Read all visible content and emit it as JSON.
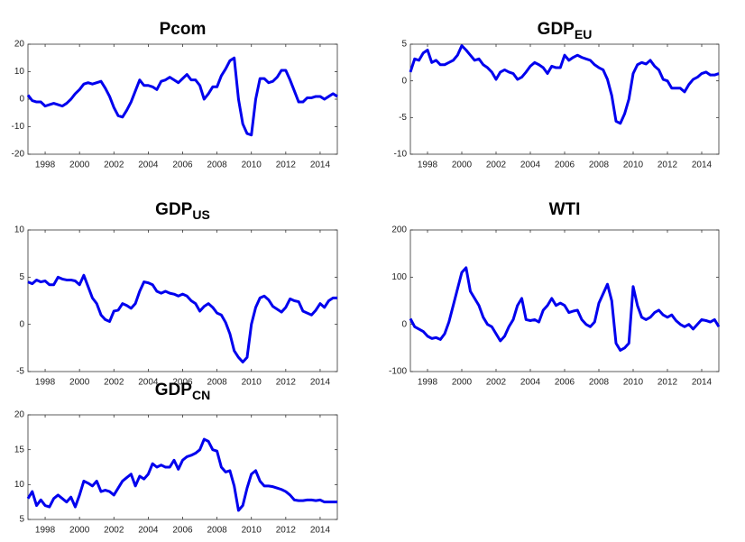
{
  "chart_data": [
    {
      "type": "line",
      "title": "Pcom",
      "x": [
        1997,
        1997.25,
        1997.5,
        1997.75,
        1998,
        1998.25,
        1998.5,
        1998.75,
        1999,
        1999.25,
        1999.5,
        1999.75,
        2000,
        2000.25,
        2000.5,
        2000.75,
        2001,
        2001.25,
        2001.5,
        2001.75,
        2002,
        2002.25,
        2002.5,
        2002.75,
        2003,
        2003.25,
        2003.5,
        2003.75,
        2004,
        2004.25,
        2004.5,
        2004.75,
        2005,
        2005.25,
        2005.5,
        2005.75,
        2006,
        2006.25,
        2006.5,
        2006.75,
        2007,
        2007.25,
        2007.5,
        2007.75,
        2008,
        2008.25,
        2008.5,
        2008.75,
        2009,
        2009.25,
        2009.5,
        2009.75,
        2010,
        2010.25,
        2010.5,
        2010.75,
        2011,
        2011.25,
        2011.5,
        2011.75,
        2012,
        2012.25,
        2012.5,
        2012.75,
        2013,
        2013.25,
        2013.5,
        2013.75,
        2014,
        2014.25,
        2014.5,
        2014.75,
        2015
      ],
      "values": [
        1.5,
        -0.5,
        -1,
        -1,
        -2.5,
        -2,
        -1.5,
        -2,
        -2.5,
        -1.5,
        0,
        2,
        3.5,
        5.5,
        6,
        5.5,
        6,
        6.5,
        4,
        1,
        -3,
        -6,
        -6.5,
        -4,
        -1,
        3,
        7,
        5,
        5,
        4.5,
        3.5,
        6.5,
        7,
        8,
        7,
        6,
        7.5,
        9,
        7,
        7,
        5,
        0,
        2,
        4.5,
        4.5,
        8.5,
        11,
        14,
        15,
        0,
        -9,
        -12.5,
        -13,
        0,
        7.5,
        7.5,
        6,
        6.5,
        8,
        10.5,
        10.5,
        7,
        3,
        -1,
        -1,
        0.5,
        0.5,
        1,
        1,
        0,
        1,
        2,
        1
      ],
      "color": "#0000ee",
      "xlim": [
        1997,
        2015
      ],
      "xticks": [
        1998,
        2000,
        2002,
        2004,
        2006,
        2008,
        2010,
        2012,
        2014
      ],
      "ylim": [
        -20,
        20
      ],
      "yticks": [
        -20,
        -10,
        0,
        10,
        20
      ]
    },
    {
      "type": "line",
      "title": "GDP",
      "title_subscript": "EU",
      "x": [
        1997,
        1997.25,
        1997.5,
        1997.75,
        1998,
        1998.25,
        1998.5,
        1998.75,
        1999,
        1999.25,
        1999.5,
        1999.75,
        2000,
        2000.25,
        2000.5,
        2000.75,
        2001,
        2001.25,
        2001.5,
        2001.75,
        2002,
        2002.25,
        2002.5,
        2002.75,
        2003,
        2003.25,
        2003.5,
        2003.75,
        2004,
        2004.25,
        2004.5,
        2004.75,
        2005,
        2005.25,
        2005.5,
        2005.75,
        2006,
        2006.25,
        2006.5,
        2006.75,
        2007,
        2007.25,
        2007.5,
        2007.75,
        2008,
        2008.25,
        2008.5,
        2008.75,
        2009,
        2009.25,
        2009.5,
        2009.75,
        2010,
        2010.25,
        2010.5,
        2010.75,
        2011,
        2011.25,
        2011.5,
        2011.75,
        2012,
        2012.25,
        2012.5,
        2012.75,
        2013,
        2013.25,
        2013.5,
        2013.75,
        2014,
        2014.25,
        2014.5,
        2014.75,
        2015
      ],
      "values": [
        1.2,
        3,
        2.8,
        3.8,
        4.2,
        2.5,
        2.8,
        2.2,
        2.2,
        2.5,
        2.8,
        3.5,
        4.8,
        4.2,
        3.5,
        2.8,
        3,
        2.2,
        1.8,
        1.2,
        0.2,
        1.2,
        1.5,
        1.2,
        1,
        0.2,
        0.5,
        1.2,
        2,
        2.5,
        2.2,
        1.8,
        1,
        2,
        1.8,
        1.8,
        3.5,
        2.8,
        3.2,
        3.5,
        3.2,
        3,
        2.8,
        2.2,
        1.8,
        1.5,
        0.2,
        -2,
        -5.5,
        -5.8,
        -4.5,
        -2.5,
        1,
        2.2,
        2.5,
        2.3,
        2.8,
        2,
        1.5,
        0.2,
        0,
        -1,
        -1,
        -1,
        -1.5,
        -0.5,
        0.2,
        0.5,
        1,
        1.2,
        0.8,
        0.8,
        1
      ],
      "color": "#0000ee",
      "xlim": [
        1997,
        2015
      ],
      "xticks": [
        1998,
        2000,
        2002,
        2004,
        2006,
        2008,
        2010,
        2012,
        2014
      ],
      "ylim": [
        -10,
        5
      ],
      "yticks": [
        -10,
        -5,
        0,
        5
      ]
    },
    {
      "type": "line",
      "title": "GDP",
      "title_subscript": "US",
      "x": [
        1997,
        1997.25,
        1997.5,
        1997.75,
        1998,
        1998.25,
        1998.5,
        1998.75,
        1999,
        1999.25,
        1999.5,
        1999.75,
        2000,
        2000.25,
        2000.5,
        2000.75,
        2001,
        2001.25,
        2001.5,
        2001.75,
        2002,
        2002.25,
        2002.5,
        2002.75,
        2003,
        2003.25,
        2003.5,
        2003.75,
        2004,
        2004.25,
        2004.5,
        2004.75,
        2005,
        2005.25,
        2005.5,
        2005.75,
        2006,
        2006.25,
        2006.5,
        2006.75,
        2007,
        2007.25,
        2007.5,
        2007.75,
        2008,
        2008.25,
        2008.5,
        2008.75,
        2009,
        2009.25,
        2009.5,
        2009.75,
        2010,
        2010.25,
        2010.5,
        2010.75,
        2011,
        2011.25,
        2011.5,
        2011.75,
        2012,
        2012.25,
        2012.5,
        2012.75,
        2013,
        2013.25,
        2013.5,
        2013.75,
        2014,
        2014.25,
        2014.5,
        2014.75,
        2015
      ],
      "values": [
        4.5,
        4.3,
        4.7,
        4.5,
        4.6,
        4.2,
        4.2,
        5,
        4.8,
        4.7,
        4.7,
        4.6,
        4.2,
        5.2,
        4,
        2.8,
        2.2,
        1,
        0.5,
        0.3,
        1.4,
        1.5,
        2.2,
        2,
        1.7,
        2.2,
        3.5,
        4.5,
        4.4,
        4.2,
        3.5,
        3.3,
        3.5,
        3.3,
        3.2,
        3,
        3.2,
        3,
        2.5,
        2.2,
        1.4,
        1.9,
        2.2,
        1.8,
        1.2,
        1,
        0.2,
        -1,
        -2.8,
        -3.5,
        -4,
        -3.5,
        0,
        1.8,
        2.8,
        3,
        2.6,
        1.9,
        1.6,
        1.3,
        1.8,
        2.7,
        2.5,
        2.4,
        1.4,
        1.2,
        1,
        1.5,
        2.2,
        1.8,
        2.5,
        2.8,
        2.8
      ],
      "color": "#0000ee",
      "xlim": [
        1997,
        2015
      ],
      "xticks": [
        1998,
        2000,
        2002,
        2004,
        2006,
        2008,
        2010,
        2012,
        2014
      ],
      "ylim": [
        -5,
        10
      ],
      "yticks": [
        -5,
        0,
        5,
        10
      ]
    },
    {
      "type": "line",
      "title": "WTI",
      "x": [
        1997,
        1997.25,
        1997.5,
        1997.75,
        1998,
        1998.25,
        1998.5,
        1998.75,
        1999,
        1999.25,
        1999.5,
        1999.75,
        2000,
        2000.25,
        2000.5,
        2000.75,
        2001,
        2001.25,
        2001.5,
        2001.75,
        2002,
        2002.25,
        2002.5,
        2002.75,
        2003,
        2003.25,
        2003.5,
        2003.75,
        2004,
        2004.25,
        2004.5,
        2004.75,
        2005,
        2005.25,
        2005.5,
        2005.75,
        2006,
        2006.25,
        2006.5,
        2006.75,
        2007,
        2007.25,
        2007.5,
        2007.75,
        2008,
        2008.25,
        2008.5,
        2008.75,
        2009,
        2009.25,
        2009.5,
        2009.75,
        2010,
        2010.25,
        2010.5,
        2010.75,
        2011,
        2011.25,
        2011.5,
        2011.75,
        2012,
        2012.25,
        2012.5,
        2012.75,
        2013,
        2013.25,
        2013.5,
        2013.75,
        2014,
        2014.25,
        2014.5,
        2014.75,
        2015
      ],
      "values": [
        12,
        -5,
        -10,
        -15,
        -25,
        -30,
        -28,
        -32,
        -20,
        5,
        40,
        75,
        110,
        120,
        70,
        55,
        40,
        15,
        0,
        -5,
        -20,
        -35,
        -25,
        -5,
        10,
        40,
        55,
        10,
        8,
        10,
        5,
        30,
        40,
        55,
        40,
        45,
        40,
        25,
        28,
        30,
        10,
        0,
        -5,
        5,
        45,
        65,
        85,
        50,
        -40,
        -55,
        -50,
        -40,
        80,
        40,
        15,
        10,
        15,
        25,
        30,
        20,
        15,
        20,
        8,
        0,
        -5,
        0,
        -10,
        0,
        10,
        8,
        5,
        10,
        -5
      ],
      "color": "#0000ee",
      "xlim": [
        1997,
        2015
      ],
      "xticks": [
        1998,
        2000,
        2002,
        2004,
        2006,
        2008,
        2010,
        2012,
        2014
      ],
      "ylim": [
        -100,
        200
      ],
      "yticks": [
        -100,
        0,
        100,
        200
      ]
    },
    {
      "type": "line",
      "title": "GDP",
      "title_subscript": "CN",
      "x": [
        1997,
        1997.25,
        1997.5,
        1997.75,
        1998,
        1998.25,
        1998.5,
        1998.75,
        1999,
        1999.25,
        1999.5,
        1999.75,
        2000,
        2000.25,
        2000.5,
        2000.75,
        2001,
        2001.25,
        2001.5,
        2001.75,
        2002,
        2002.25,
        2002.5,
        2002.75,
        2003,
        2003.25,
        2003.5,
        2003.75,
        2004,
        2004.25,
        2004.5,
        2004.75,
        2005,
        2005.25,
        2005.5,
        2005.75,
        2006,
        2006.25,
        2006.5,
        2006.75,
        2007,
        2007.25,
        2007.5,
        2007.75,
        2008,
        2008.25,
        2008.5,
        2008.75,
        2009,
        2009.25,
        2009.5,
        2009.75,
        2010,
        2010.25,
        2010.5,
        2010.75,
        2011,
        2011.25,
        2011.5,
        2011.75,
        2012,
        2012.25,
        2012.5,
        2012.75,
        2013,
        2013.25,
        2013.5,
        2013.75,
        2014,
        2014.25,
        2014.5,
        2014.75,
        2015
      ],
      "values": [
        8,
        9,
        7,
        7.8,
        7,
        6.8,
        8,
        8.5,
        8,
        7.5,
        8.2,
        6.8,
        8.5,
        10.5,
        10.2,
        9.8,
        10.5,
        9,
        9.2,
        9,
        8.5,
        9.5,
        10.5,
        11,
        11.5,
        9.8,
        11.2,
        10.8,
        11.5,
        13,
        12.5,
        12.8,
        12.5,
        12.5,
        13.5,
        12.2,
        13.5,
        14,
        14.2,
        14.5,
        15,
        16.5,
        16.2,
        15,
        14.8,
        12.5,
        11.8,
        12,
        9.8,
        6.3,
        7,
        9.5,
        11.5,
        12,
        10.5,
        9.8,
        9.8,
        9.7,
        9.5,
        9.3,
        9,
        8.5,
        7.8,
        7.7,
        7.7,
        7.8,
        7.8,
        7.7,
        7.8,
        7.5,
        7.5,
        7.5,
        7.5
      ],
      "color": "#0000ee",
      "xlim": [
        1997,
        2015
      ],
      "xticks": [
        1998,
        2000,
        2002,
        2004,
        2006,
        2008,
        2010,
        2012,
        2014
      ],
      "ylim": [
        5,
        20
      ],
      "yticks": [
        5,
        10,
        15,
        20
      ]
    }
  ]
}
